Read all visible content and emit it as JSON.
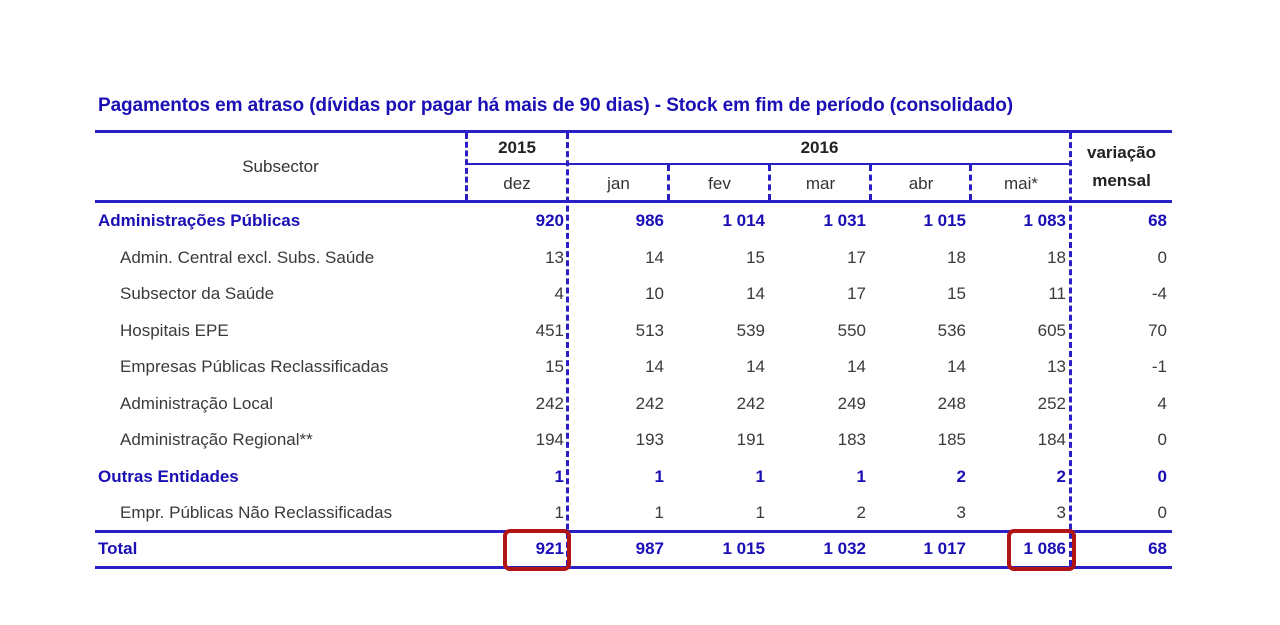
{
  "title": "Pagamentos em atraso (dívidas por pagar há mais de 90 dias) - Stock em fim de período (consolidado)",
  "header": {
    "subsector": "Subsector",
    "year_2015": "2015",
    "year_2016": "2016",
    "variation_line1": "variação",
    "variation_line2": "mensal",
    "months": [
      "dez",
      "jan",
      "fev",
      "mar",
      "abr",
      "mai*"
    ]
  },
  "colors": {
    "accent_blue": "#1a0fb4",
    "line_blue": "#2a1fc4",
    "highlight_red": "#b01414",
    "text": "#3a3a3a"
  },
  "rows": [
    {
      "label": "Administrações Públicas",
      "group": true,
      "values": [
        "920",
        "986",
        "1 014",
        "1 031",
        "1 015",
        "1 083"
      ],
      "variation": "68"
    },
    {
      "label": "Admin. Central excl. Subs. Saúde",
      "group": false,
      "values": [
        "13",
        "14",
        "15",
        "17",
        "18",
        "18"
      ],
      "variation": "0"
    },
    {
      "label": "Subsector da Saúde",
      "group": false,
      "values": [
        "4",
        "10",
        "14",
        "17",
        "15",
        "11"
      ],
      "variation": "-4"
    },
    {
      "label": "Hospitais EPE",
      "group": false,
      "values": [
        "451",
        "513",
        "539",
        "550",
        "536",
        "605"
      ],
      "variation": "70"
    },
    {
      "label": "Empresas Públicas Reclassificadas",
      "group": false,
      "values": [
        "15",
        "14",
        "14",
        "14",
        "14",
        "13"
      ],
      "variation": "-1"
    },
    {
      "label": "Administração Local",
      "group": false,
      "values": [
        "242",
        "242",
        "242",
        "249",
        "248",
        "252"
      ],
      "variation": "4"
    },
    {
      "label": "Administração Regional**",
      "group": false,
      "values": [
        "194",
        "193",
        "191",
        "183",
        "185",
        "184"
      ],
      "variation": "0"
    },
    {
      "label": "Outras Entidades",
      "group": true,
      "values": [
        "1",
        "1",
        "1",
        "1",
        "2",
        "2"
      ],
      "variation": "0"
    },
    {
      "label": "Empr. Públicas Não Reclassificadas",
      "group": false,
      "values": [
        "1",
        "1",
        "1",
        "2",
        "3",
        "3"
      ],
      "variation": "0"
    }
  ],
  "total": {
    "label": "Total",
    "values": [
      "921",
      "987",
      "1 015",
      "1 032",
      "1 017",
      "1 086"
    ],
    "variation": "68"
  },
  "highlights": [
    {
      "column": "dez",
      "value": "921"
    },
    {
      "column": "mai*",
      "value": "1 086"
    }
  ]
}
